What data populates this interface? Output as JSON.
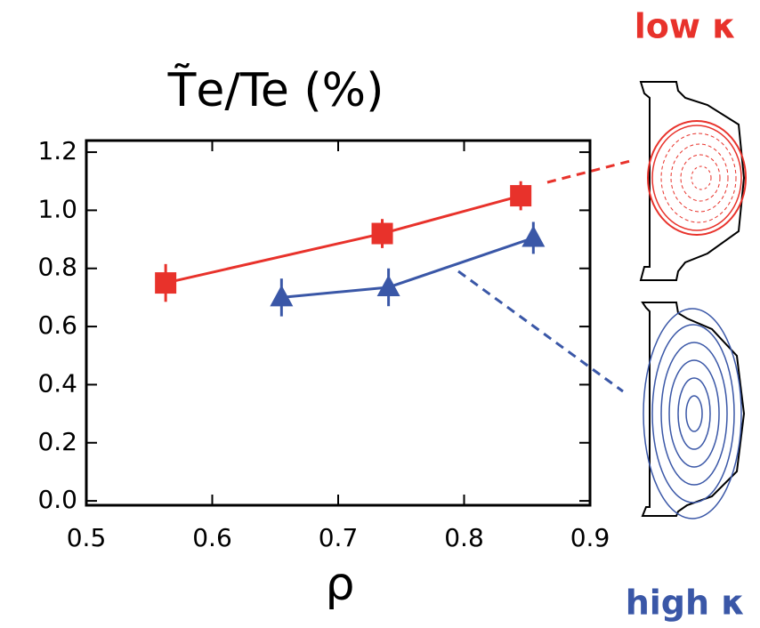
{
  "chart_data": {
    "type": "line",
    "title": "T̃e/Te (%)",
    "x_label": "ρ",
    "annotations": [
      "low κ",
      "high κ"
    ],
    "xlim": [
      0.5,
      0.9
    ],
    "xticks": [
      0.5,
      0.6,
      0.7,
      0.8,
      0.9
    ],
    "ylim": [
      -0.015,
      1.24
    ],
    "yticks": [
      {
        "value": 0,
        "label": "0.0"
      },
      0.2,
      0.4,
      0.6,
      0.8,
      {
        "value": 1,
        "label": "1.0"
      },
      1.2
    ],
    "series": [
      {
        "color": "#e8322b",
        "marker": "square",
        "x": [
          0.563,
          0.735,
          0.845
        ],
        "values": [
          0.75,
          0.92,
          1.05
        ],
        "errors": [
          0.065,
          0.05,
          0.05
        ]
      },
      {
        "color": "#3a57a7",
        "marker": "triangle",
        "x": [
          0.655,
          0.74,
          0.855
        ],
        "values": [
          0.7,
          0.735,
          0.905
        ],
        "errors": [
          0.065,
          0.065,
          0.055
        ]
      }
    ]
  }
}
